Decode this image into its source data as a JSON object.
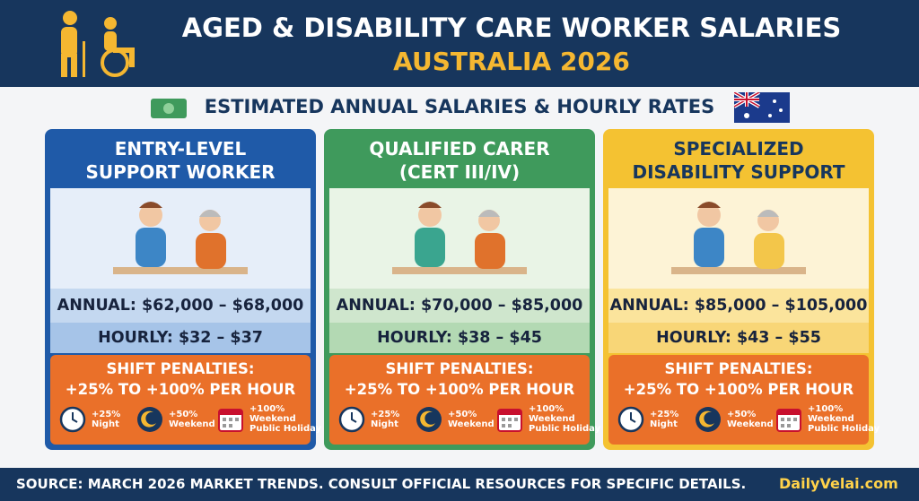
{
  "header": {
    "title": "AGED & DISABILITY CARE WORKER SALARIES",
    "subtitle": "AUSTRALIA 2026"
  },
  "section": {
    "heading": "ESTIMATED ANNUAL SALARIES & HOURLY RATES"
  },
  "cards": [
    {
      "title": [
        "ENTRY-LEVEL",
        "SUPPORT WORKER"
      ],
      "annual": "ANNUAL: $62,000 – $68,000",
      "hourly": "HOURLY: $32 – $37",
      "penalties": {
        "heading": [
          "SHIFT PENALTIES:",
          "+25% TO +100% PER HOUR"
        ],
        "items": [
          {
            "rate": "+25%",
            "label": [
              "Night"
            ]
          },
          {
            "rate": "+50%",
            "label": [
              "Weekend"
            ]
          },
          {
            "rate": "+100%",
            "label": [
              "Weekend",
              "Public Holiday"
            ]
          }
        ]
      }
    },
    {
      "title": [
        "QUALIFIED CARER",
        "(CERT III/IV)"
      ],
      "annual": "ANNUAL: $70,000 – $85,000",
      "hourly": "HOURLY: $38 – $45",
      "penalties": {
        "heading": [
          "SHIFT PENALTIES:",
          "+25% TO +100% PER HOUR"
        ],
        "items": [
          {
            "rate": "+25%",
            "label": [
              "Night"
            ]
          },
          {
            "rate": "+50%",
            "label": [
              "Weekend"
            ]
          },
          {
            "rate": "+100%",
            "label": [
              "Weekend",
              "Public Holiday"
            ]
          }
        ]
      }
    },
    {
      "title": [
        "SPECIALIZED",
        "DISABILITY SUPPORT"
      ],
      "annual": "ANNUAL: $85,000 – $105,000",
      "hourly": "HOURLY: $43 – $55",
      "penalties": {
        "heading": [
          "SHIFT PENALTIES:",
          "+25% TO +100% PER HOUR"
        ],
        "items": [
          {
            "rate": "+25%",
            "label": [
              "Night"
            ]
          },
          {
            "rate": "+50%",
            "label": [
              "Weekend"
            ]
          },
          {
            "rate": "+100%",
            "label": [
              "Weekend",
              "Public Holiday"
            ]
          }
        ]
      }
    }
  ],
  "footer": {
    "source": "SOURCE: MARCH 2026 MARKET TRENDS. CONSULT OFFICIAL RESOURCES FOR SPECIFIC DETAILS.",
    "brand": "DailyVelai.com"
  }
}
